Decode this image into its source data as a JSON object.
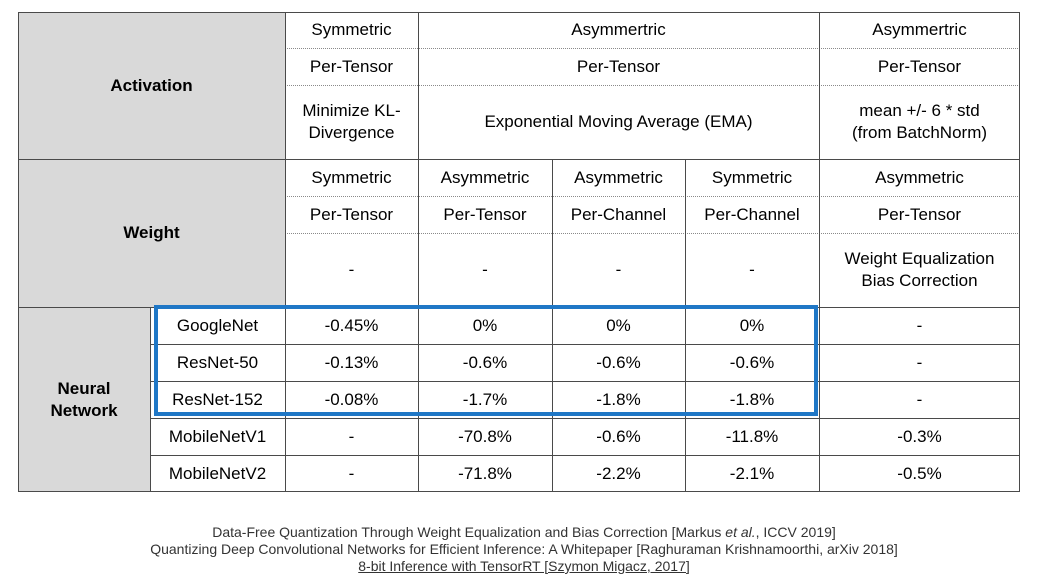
{
  "row_headers": {
    "activation": "Activation",
    "weight": "Weight",
    "neural_network": [
      "Neural",
      "Network"
    ]
  },
  "activation": {
    "symmetry": [
      "Symmetric",
      "Asymmertric",
      "Asymmertric"
    ],
    "granularity": [
      "Per-Tensor",
      "Per-Tensor",
      "Per-Tensor"
    ],
    "method": [
      [
        "Minimize KL-",
        "Divergence"
      ],
      [
        "Exponential Moving Average (EMA)"
      ],
      [
        "mean +/- 6 * std",
        "(from BatchNorm)"
      ]
    ]
  },
  "weight": {
    "symmetry": [
      "Symmetric",
      "Asymmetric",
      "Asymmetric",
      "Symmetric",
      "Asymmetric"
    ],
    "granularity": [
      "Per-Tensor",
      "Per-Tensor",
      "Per-Channel",
      "Per-Channel",
      "Per-Tensor"
    ],
    "method": [
      [
        "-"
      ],
      [
        "-"
      ],
      [
        "-"
      ],
      [
        "-"
      ],
      [
        "Weight Equalization",
        "Bias Correction"
      ]
    ]
  },
  "networks": [
    {
      "name": "GoogleNet",
      "values": [
        "-0.45%",
        "0%",
        "0%",
        "0%",
        "-"
      ]
    },
    {
      "name": "ResNet-50",
      "values": [
        "-0.13%",
        "-0.6%",
        "-0.6%",
        "-0.6%",
        "-"
      ]
    },
    {
      "name": "ResNet-152",
      "values": [
        "-0.08%",
        "-1.7%",
        "-1.8%",
        "-1.8%",
        "-"
      ]
    },
    {
      "name": "MobileNetV1",
      "values": [
        "-",
        "-70.8%",
        "-0.6%",
        "-11.8%",
        "-0.3%"
      ]
    },
    {
      "name": "MobileNetV2",
      "values": [
        "-",
        "-71.8%",
        "-2.2%",
        "-2.1%",
        "-0.5%"
      ]
    }
  ],
  "references": {
    "ref1_pre": "Data-Free Quantization Through Weight Equalization and Bias Correction [Markus ",
    "ref1_em": "et al.",
    "ref1_post": ", ICCV 2019]",
    "ref2": "Quantizing Deep Convolutional Networks for Efficient Inference: A Whitepaper  [Raghuraman Krishnamoorthi, arXiv 2018]",
    "ref3": "8-bit Inference with TensorRT [Szymon Migacz, 2017]"
  },
  "colors": {
    "header_bg": "#d9d9d9",
    "highlight": "#1f77c6"
  }
}
